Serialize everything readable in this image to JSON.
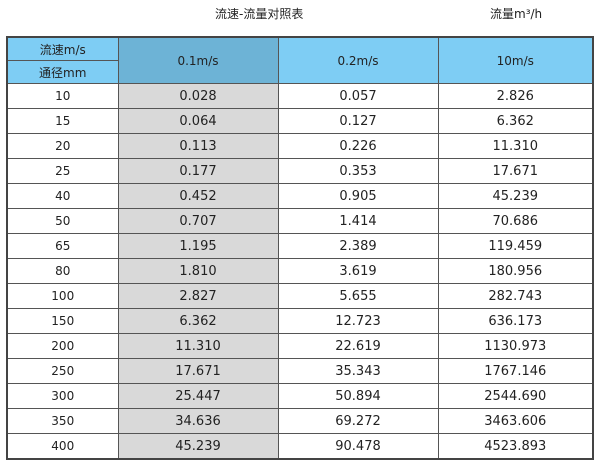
{
  "title": "流速-流量对照表",
  "unit_label": "流量m³/h",
  "colors": {
    "header": "#7ecdf4",
    "header_selected": "#6db3d6",
    "highlight_column": "#d9d9d9"
  },
  "table": {
    "corner_top": "流速m/s",
    "corner_bottom": "通径mm",
    "columns": [
      "0.1m/s",
      "0.2m/s",
      "10m/s"
    ],
    "rows": [
      [
        "10",
        "0.028",
        "0.057",
        "2.826"
      ],
      [
        "15",
        "0.064",
        "0.127",
        "6.362"
      ],
      [
        "20",
        "0.113",
        "0.226",
        "11.310"
      ],
      [
        "25",
        "0.177",
        "0.353",
        "17.671"
      ],
      [
        "40",
        "0.452",
        "0.905",
        "45.239"
      ],
      [
        "50",
        "0.707",
        "1.414",
        "70.686"
      ],
      [
        "65",
        "1.195",
        "2.389",
        "119.459"
      ],
      [
        "80",
        "1.810",
        "3.619",
        "180.956"
      ],
      [
        "100",
        "2.827",
        "5.655",
        "282.743"
      ],
      [
        "150",
        "6.362",
        "12.723",
        "636.173"
      ],
      [
        "200",
        "11.310",
        "22.619",
        "1130.973"
      ],
      [
        "250",
        "17.671",
        "35.343",
        "1767.146"
      ],
      [
        "300",
        "25.447",
        "50.894",
        "2544.690"
      ],
      [
        "350",
        "34.636",
        "69.272",
        "3463.606"
      ],
      [
        "400",
        "45.239",
        "90.478",
        "4523.893"
      ]
    ]
  }
}
